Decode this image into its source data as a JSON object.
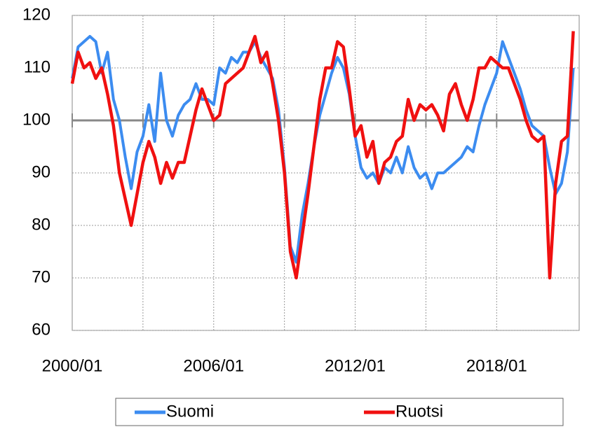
{
  "chart_data": {
    "type": "line",
    "x": [
      "2000/01",
      "2000/04",
      "2000/07",
      "2000/10",
      "2001/01",
      "2001/04",
      "2001/07",
      "2001/10",
      "2002/01",
      "2002/04",
      "2002/07",
      "2002/10",
      "2003/01",
      "2003/04",
      "2003/07",
      "2003/10",
      "2004/01",
      "2004/04",
      "2004/07",
      "2004/10",
      "2005/01",
      "2005/04",
      "2005/07",
      "2005/10",
      "2006/01",
      "2006/04",
      "2006/07",
      "2006/10",
      "2007/01",
      "2007/04",
      "2007/07",
      "2007/10",
      "2008/01",
      "2008/04",
      "2008/07",
      "2008/10",
      "2009/01",
      "2009/04",
      "2009/07",
      "2009/10",
      "2010/01",
      "2010/04",
      "2010/07",
      "2010/10",
      "2011/01",
      "2011/04",
      "2011/07",
      "2011/10",
      "2012/01",
      "2012/04",
      "2012/07",
      "2012/10",
      "2013/01",
      "2013/04",
      "2013/07",
      "2013/10",
      "2014/01",
      "2014/04",
      "2014/07",
      "2014/10",
      "2015/01",
      "2015/04",
      "2015/07",
      "2015/10",
      "2016/01",
      "2016/04",
      "2016/07",
      "2016/10",
      "2017/01",
      "2017/04",
      "2017/07",
      "2017/10",
      "2018/01",
      "2018/04",
      "2018/07",
      "2018/10",
      "2019/01",
      "2019/04",
      "2019/07",
      "2019/10",
      "2020/01",
      "2020/04",
      "2020/07",
      "2020/10",
      "2021/01",
      "2021/04"
    ],
    "series": [
      {
        "name": "Suomi",
        "color": "#3c8cf0",
        "values": [
          108,
          114,
          115,
          116,
          115,
          109,
          113,
          104,
          100,
          93,
          87,
          94,
          97,
          103,
          96,
          109,
          100,
          97,
          101,
          103,
          104,
          107,
          104,
          104,
          103,
          110,
          109,
          112,
          111,
          113,
          113,
          115,
          112,
          110,
          108,
          102,
          91,
          76,
          73,
          82,
          88,
          95,
          101,
          105,
          109,
          112,
          110,
          105,
          97,
          91,
          89,
          90,
          88,
          91,
          90,
          93,
          90,
          95,
          91,
          89,
          90,
          87,
          90,
          90,
          91,
          92,
          93,
          95,
          94,
          99,
          103,
          106,
          109,
          115,
          112,
          109,
          106,
          102,
          99,
          98,
          97,
          91,
          86,
          88,
          94,
          110
        ]
      },
      {
        "name": "Ruotsi",
        "color": "#f01010",
        "values": [
          107,
          113,
          110,
          111,
          108,
          110,
          105,
          99,
          90,
          85,
          80,
          86,
          92,
          96,
          93,
          88,
          92,
          89,
          92,
          92,
          97,
          102,
          106,
          103,
          100,
          101,
          107,
          108,
          109,
          110,
          113,
          116,
          111,
          113,
          107,
          100,
          90,
          75,
          70,
          78,
          86,
          95,
          104,
          110,
          110,
          115,
          114,
          106,
          97,
          99,
          93,
          96,
          88,
          92,
          93,
          96,
          97,
          104,
          100,
          103,
          102,
          103,
          101,
          98,
          105,
          107,
          103,
          100,
          104,
          110,
          110,
          112,
          111,
          110,
          110,
          107,
          104,
          100,
          97,
          96,
          97,
          70,
          88,
          96,
          97,
          117
        ]
      }
    ],
    "xlim": [
      "2000/01",
      "2021/07"
    ],
    "xticks": [
      "2000/01",
      "2006/01",
      "2012/01",
      "2018/01"
    ],
    "ylim": [
      60,
      120
    ],
    "yticks": [
      60,
      70,
      80,
      90,
      100,
      110,
      120
    ],
    "x_axis_crossing": 100,
    "grid": true
  }
}
